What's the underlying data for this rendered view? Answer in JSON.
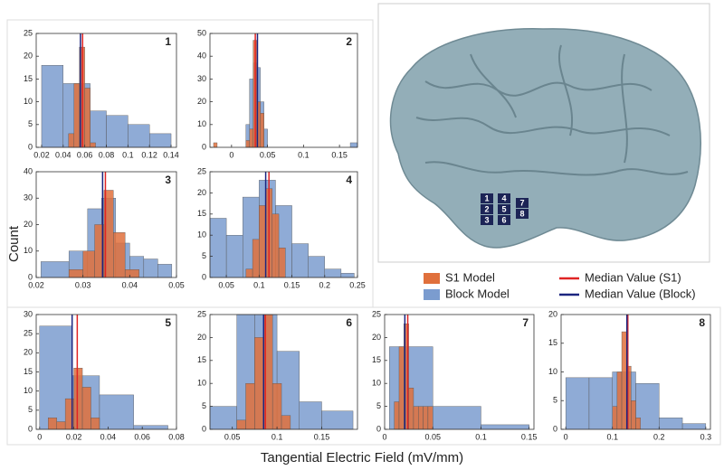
{
  "y_label": "Count",
  "x_label": "Tangential Electric Field (mV/mm)",
  "brain": {
    "electrodes": [
      "1",
      "2",
      "3",
      "4",
      "5",
      "6",
      "7",
      "8"
    ]
  },
  "chart_data": [
    {
      "type": "histogram",
      "panel": "1",
      "xlim": [
        0.015,
        0.145
      ],
      "xticks": [
        0.02,
        0.04,
        0.06,
        0.08,
        0.1,
        0.12,
        0.14
      ],
      "ylim": [
        0,
        25
      ],
      "yticks": [
        0,
        5,
        10,
        15,
        20,
        25
      ],
      "series": [
        {
          "name": "S1 Model",
          "color": "#e0703c",
          "bins": [
            0.045,
            0.05,
            0.055,
            0.06,
            0.065,
            0.07
          ],
          "values": [
            3,
            14,
            22,
            13,
            1
          ]
        },
        {
          "name": "Block Model",
          "color": "#7b9ccf",
          "bins": [
            0.02,
            0.04,
            0.065,
            0.08,
            0.1,
            0.12,
            0.14
          ],
          "values": [
            18,
            14,
            8,
            7,
            5,
            3
          ]
        }
      ],
      "medians": [
        {
          "name": "Median Value (S1)",
          "color": "#e02424",
          "value": 0.058
        },
        {
          "name": "Median Value (Block)",
          "color": "#1c2580",
          "value": 0.056
        }
      ]
    },
    {
      "type": "histogram",
      "panel": "2",
      "xlim": [
        -0.03,
        0.175
      ],
      "xticks": [
        0,
        0.05,
        0.1,
        0.15
      ],
      "ylim": [
        0,
        50
      ],
      "yticks": [
        0,
        10,
        20,
        30,
        40,
        50
      ],
      "series": [
        {
          "name": "S1 Model",
          "color": "#e0703c",
          "bins": [
            -0.025,
            -0.02,
            0.02,
            0.025,
            0.03,
            0.035,
            0.04,
            0.045
          ],
          "values": [
            2,
            0,
            3,
            8,
            47,
            20,
            15
          ]
        },
        {
          "name": "Block Model",
          "color": "#7b9ccf",
          "bins": [
            0.02,
            0.025,
            0.03,
            0.035,
            0.04,
            0.045,
            0.05,
            0.165,
            0.175
          ],
          "values": [
            10,
            30,
            37,
            35,
            20,
            8,
            0,
            2
          ]
        }
      ],
      "medians": [
        {
          "name": "Median Value (S1)",
          "color": "#e02424",
          "value": 0.033
        },
        {
          "name": "Median Value (Block)",
          "color": "#1c2580",
          "value": 0.036
        }
      ]
    },
    {
      "type": "histogram",
      "panel": "3",
      "xlim": [
        0.02,
        0.05
      ],
      "xticks": [
        0.02,
        0.03,
        0.04,
        0.05
      ],
      "ylim": [
        0,
        40
      ],
      "yticks": [
        0,
        10,
        20,
        30,
        40
      ],
      "series": [
        {
          "name": "S1 Model",
          "color": "#e0703c",
          "bins": [
            0.027,
            0.03,
            0.0325,
            0.0345,
            0.0365,
            0.039,
            0.042
          ],
          "values": [
            3,
            10,
            20,
            33,
            17,
            3
          ]
        },
        {
          "name": "Block Model",
          "color": "#7b9ccf",
          "bins": [
            0.021,
            0.027,
            0.031,
            0.034,
            0.037,
            0.04,
            0.043,
            0.046,
            0.049
          ],
          "values": [
            6,
            10,
            26,
            30,
            13,
            8,
            7,
            5
          ]
        }
      ],
      "medians": [
        {
          "name": "Median Value (S1)",
          "color": "#e02424",
          "value": 0.0348
        },
        {
          "name": "Median Value (Block)",
          "color": "#1c2580",
          "value": 0.0342
        }
      ]
    },
    {
      "type": "histogram",
      "panel": "4",
      "xlim": [
        0.025,
        0.25
      ],
      "xticks": [
        0.05,
        0.1,
        0.15,
        0.2,
        0.25
      ],
      "ylim": [
        0,
        25
      ],
      "yticks": [
        0,
        5,
        10,
        15,
        20,
        25
      ],
      "series": [
        {
          "name": "S1 Model",
          "color": "#e0703c",
          "bins": [
            0.08,
            0.09,
            0.1,
            0.11,
            0.12,
            0.13,
            0.14
          ],
          "values": [
            2,
            9,
            17,
            21,
            15,
            7
          ]
        },
        {
          "name": "Block Model",
          "color": "#7b9ccf",
          "bins": [
            0.025,
            0.05,
            0.075,
            0.1,
            0.125,
            0.15,
            0.175,
            0.2,
            0.225,
            0.245
          ],
          "values": [
            14,
            10,
            19,
            23,
            17,
            8,
            5,
            2,
            1
          ]
        }
      ],
      "medians": [
        {
          "name": "Median Value (S1)",
          "color": "#e02424",
          "value": 0.115
        },
        {
          "name": "Median Value (Block)",
          "color": "#1c2580",
          "value": 0.11
        }
      ]
    },
    {
      "type": "histogram",
      "panel": "5",
      "xlim": [
        -0.002,
        0.08
      ],
      "xticks": [
        0,
        0.02,
        0.04,
        0.06,
        0.08
      ],
      "ylim": [
        0,
        30
      ],
      "yticks": [
        0,
        5,
        10,
        15,
        20,
        25,
        30
      ],
      "series": [
        {
          "name": "S1 Model",
          "color": "#e0703c",
          "bins": [
            0.005,
            0.01,
            0.015,
            0.02,
            0.025,
            0.03,
            0.035
          ],
          "values": [
            3,
            2,
            8,
            16,
            11,
            3
          ]
        },
        {
          "name": "Block Model",
          "color": "#7b9ccf",
          "bins": [
            0,
            0.019,
            0.035,
            0.055,
            0.075
          ],
          "values": [
            27,
            14,
            9,
            1
          ]
        }
      ],
      "medians": [
        {
          "name": "Median Value (S1)",
          "color": "#e02424",
          "value": 0.022
        },
        {
          "name": "Median Value (Block)",
          "color": "#1c2580",
          "value": 0.019
        }
      ]
    },
    {
      "type": "histogram",
      "panel": "6",
      "xlim": [
        0.025,
        0.19
      ],
      "xticks": [
        0.05,
        0.1,
        0.15
      ],
      "ylim": [
        0,
        25
      ],
      "yticks": [
        0,
        5,
        10,
        15,
        20,
        25
      ],
      "series": [
        {
          "name": "S1 Model",
          "color": "#e0703c",
          "bins": [
            0.055,
            0.065,
            0.075,
            0.085,
            0.095,
            0.105,
            0.115
          ],
          "values": [
            2,
            10,
            20,
            25,
            10,
            3
          ]
        },
        {
          "name": "Block Model",
          "color": "#7b9ccf",
          "bins": [
            0.025,
            0.055,
            0.075,
            0.1,
            0.125,
            0.15,
            0.185
          ],
          "values": [
            5,
            25,
            25,
            17,
            6,
            4
          ]
        }
      ],
      "medians": [
        {
          "name": "Median Value (S1)",
          "color": "#e02424",
          "value": 0.087
        },
        {
          "name": "Median Value (Block)",
          "color": "#1c2580",
          "value": 0.085
        }
      ]
    },
    {
      "type": "histogram",
      "panel": "7",
      "xlim": [
        0,
        0.155
      ],
      "xticks": [
        0,
        0.05,
        0.1,
        0.15
      ],
      "ylim": [
        0,
        25
      ],
      "yticks": [
        0,
        5,
        10,
        15,
        20,
        25
      ],
      "series": [
        {
          "name": "S1 Model",
          "color": "#e0703c",
          "bins": [
            0.01,
            0.015,
            0.02,
            0.025,
            0.03,
            0.035,
            0.04,
            0.045,
            0.05
          ],
          "values": [
            6,
            18,
            23,
            9,
            5,
            5,
            5,
            5
          ]
        },
        {
          "name": "Block Model",
          "color": "#7b9ccf",
          "bins": [
            0.005,
            0.05,
            0.1,
            0.15
          ],
          "values": [
            18,
            5,
            1
          ]
        }
      ],
      "medians": [
        {
          "name": "Median Value (S1)",
          "color": "#e02424",
          "value": 0.024
        },
        {
          "name": "Median Value (Block)",
          "color": "#1c2580",
          "value": 0.021
        }
      ]
    },
    {
      "type": "histogram",
      "panel": "8",
      "xlim": [
        -0.01,
        0.31
      ],
      "xticks": [
        0,
        0.1,
        0.2,
        0.3
      ],
      "ylim": [
        0,
        20
      ],
      "yticks": [
        0,
        5,
        10,
        15,
        20
      ],
      "series": [
        {
          "name": "S1 Model",
          "color": "#e0703c",
          "bins": [
            0.1,
            0.11,
            0.12,
            0.13,
            0.14,
            0.15,
            0.16
          ],
          "values": [
            4,
            10,
            17,
            11,
            5,
            2
          ]
        },
        {
          "name": "Block Model",
          "color": "#7b9ccf",
          "bins": [
            0,
            0.05,
            0.1,
            0.15,
            0.2,
            0.25,
            0.3
          ],
          "values": [
            9,
            9,
            10,
            8,
            2,
            1
          ]
        }
      ],
      "medians": [
        {
          "name": "Median Value (S1)",
          "color": "#e02424",
          "value": 0.133
        },
        {
          "name": "Median Value (Block)",
          "color": "#1c2580",
          "value": 0.131
        }
      ]
    }
  ]
}
